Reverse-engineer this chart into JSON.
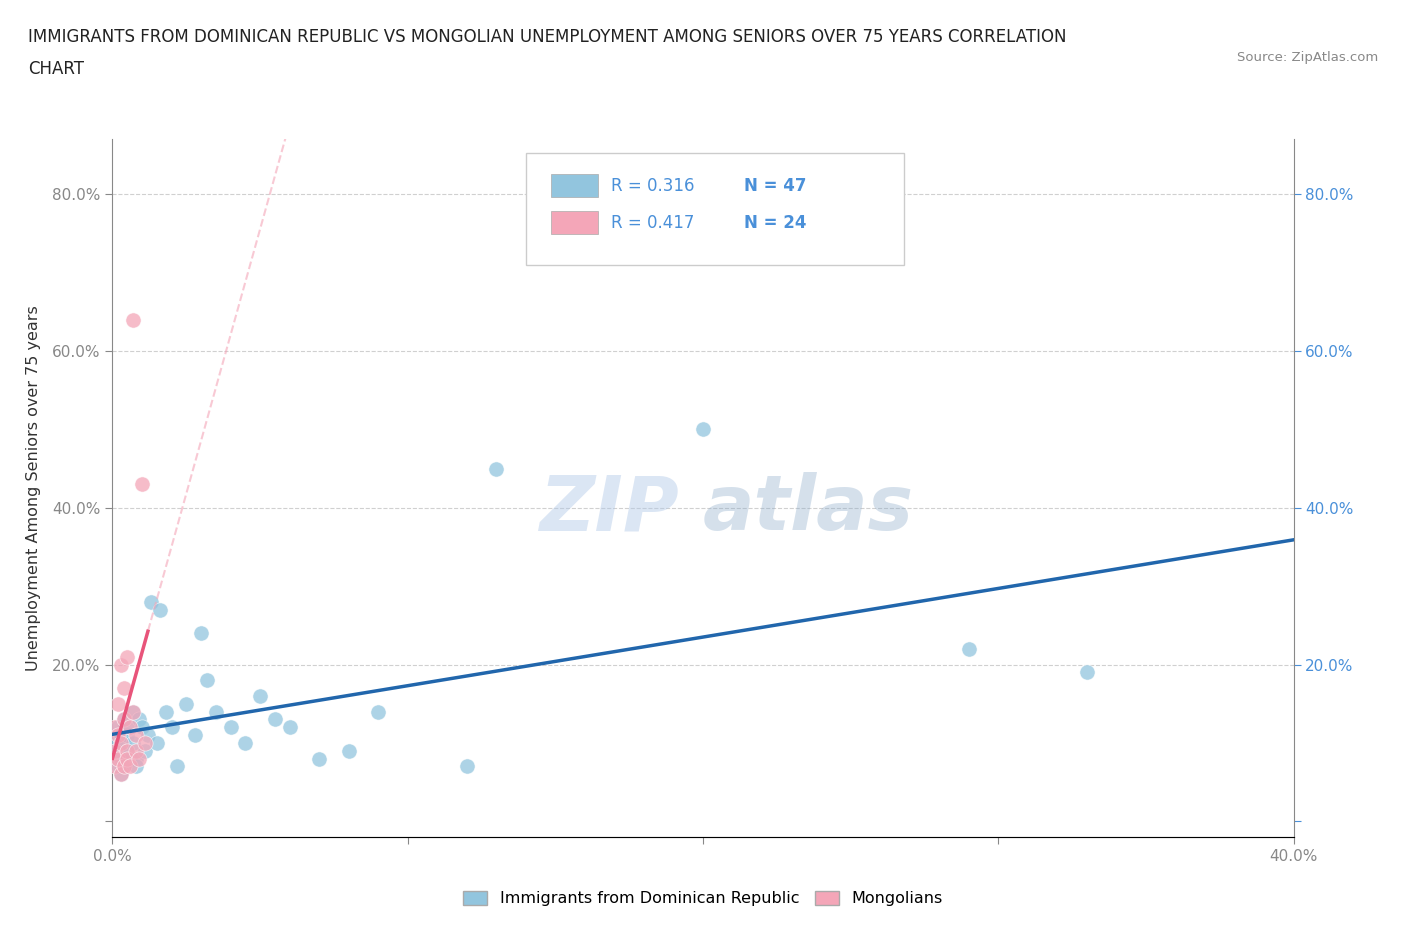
{
  "title_line1": "IMMIGRANTS FROM DOMINICAN REPUBLIC VS MONGOLIAN UNEMPLOYMENT AMONG SENIORS OVER 75 YEARS CORRELATION",
  "title_line2": "CHART",
  "source": "Source: ZipAtlas.com",
  "ylabel": "Unemployment Among Seniors over 75 years",
  "xlim": [
    0.0,
    0.4
  ],
  "ylim": [
    -0.02,
    0.87
  ],
  "xticks": [
    0.0,
    0.1,
    0.2,
    0.3,
    0.4
  ],
  "xtick_labels": [
    "0.0%",
    "",
    "",
    "",
    "40.0%"
  ],
  "yticks": [
    0.0,
    0.2,
    0.4,
    0.6,
    0.8
  ],
  "ytick_labels": [
    "",
    "20.0%",
    "40.0%",
    "60.0%",
    "80.0%"
  ],
  "right_ytick_labels": [
    "",
    "20.0%",
    "40.0%",
    "60.0%",
    "80.0%"
  ],
  "blue_R": "0.316",
  "blue_N": "47",
  "pink_R": "0.417",
  "pink_N": "24",
  "blue_color": "#92c5de",
  "pink_color": "#f4a6b8",
  "trend_blue_color": "#2166ac",
  "trend_pink_color": "#e8547a",
  "trend_pink_dash_color": "#f4a6b8",
  "blue_scatter_x": [
    0.001,
    0.001,
    0.002,
    0.002,
    0.002,
    0.003,
    0.003,
    0.003,
    0.004,
    0.004,
    0.004,
    0.005,
    0.005,
    0.006,
    0.006,
    0.007,
    0.007,
    0.008,
    0.008,
    0.009,
    0.01,
    0.011,
    0.012,
    0.013,
    0.015,
    0.016,
    0.018,
    0.02,
    0.022,
    0.025,
    0.028,
    0.03,
    0.032,
    0.035,
    0.04,
    0.045,
    0.05,
    0.055,
    0.06,
    0.07,
    0.08,
    0.09,
    0.12,
    0.13,
    0.2,
    0.29,
    0.33
  ],
  "blue_scatter_y": [
    0.1,
    0.08,
    0.12,
    0.07,
    0.09,
    0.11,
    0.06,
    0.08,
    0.1,
    0.07,
    0.13,
    0.09,
    0.11,
    0.08,
    0.12,
    0.1,
    0.14,
    0.08,
    0.07,
    0.13,
    0.12,
    0.09,
    0.11,
    0.28,
    0.1,
    0.27,
    0.14,
    0.12,
    0.07,
    0.15,
    0.11,
    0.24,
    0.18,
    0.14,
    0.12,
    0.1,
    0.16,
    0.13,
    0.12,
    0.08,
    0.09,
    0.14,
    0.07,
    0.45,
    0.5,
    0.22,
    0.19
  ],
  "pink_scatter_x": [
    0.001,
    0.001,
    0.001,
    0.002,
    0.002,
    0.002,
    0.003,
    0.003,
    0.003,
    0.004,
    0.004,
    0.004,
    0.005,
    0.005,
    0.005,
    0.006,
    0.006,
    0.007,
    0.007,
    0.008,
    0.008,
    0.009,
    0.01,
    0.011
  ],
  "pink_scatter_y": [
    0.07,
    0.09,
    0.12,
    0.08,
    0.11,
    0.15,
    0.06,
    0.1,
    0.2,
    0.07,
    0.13,
    0.17,
    0.09,
    0.21,
    0.08,
    0.12,
    0.07,
    0.14,
    0.64,
    0.09,
    0.11,
    0.08,
    0.43,
    0.1
  ],
  "watermark_line1": "ZIP",
  "watermark_line2": "atlas",
  "legend_labels": [
    "Immigrants from Dominican Republic",
    "Mongolians"
  ],
  "grid_color": "#d0d0d0",
  "axis_color": "#888888"
}
